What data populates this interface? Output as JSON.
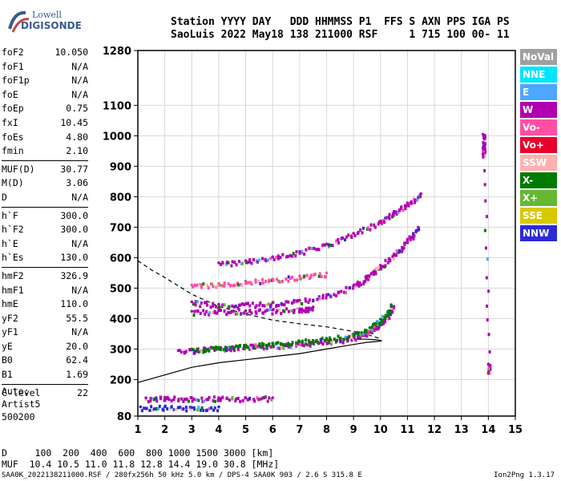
{
  "logo": {
    "line1": "Lowell",
    "line2": "DIGISONDE"
  },
  "header": {
    "labels": "Station YYYY DAY   DDD HHMMSS P1  FFS S AXN PPS IGA PS",
    "values": "SaoLuis 2022 May18 138 211000 RSF     1 715 100 00- 11"
  },
  "params": {
    "group1": [
      {
        "k": "foF2",
        "v": "10.050"
      },
      {
        "k": "foF1",
        "v": "N/A"
      },
      {
        "k": "foF1p",
        "v": "N/A"
      },
      {
        "k": "foE",
        "v": "N/A"
      },
      {
        "k": "foEp",
        "v": "0.75"
      },
      {
        "k": "fxI",
        "v": "10.45"
      },
      {
        "k": "foEs",
        "v": "4.80"
      },
      {
        "k": "fmin",
        "v": "2.10"
      }
    ],
    "group2": [
      {
        "k": "MUF(D)",
        "v": "30.77"
      },
      {
        "k": "M(D)",
        "v": "3.06"
      },
      {
        "k": "D",
        "v": "N/A"
      }
    ],
    "group3": [
      {
        "k": "h`F",
        "v": "300.0"
      },
      {
        "k": "h`F2",
        "v": "300.0"
      },
      {
        "k": "h`E",
        "v": "N/A"
      },
      {
        "k": "h`Es",
        "v": "130.0"
      }
    ],
    "group4": [
      {
        "k": "hmF2",
        "v": "326.9"
      },
      {
        "k": "hmF1",
        "v": "N/A"
      },
      {
        "k": "hmE",
        "v": "110.0"
      },
      {
        "k": "yF2",
        "v": "55.5"
      },
      {
        "k": "yF1",
        "v": "N/A"
      },
      {
        "k": "yE",
        "v": "20.0"
      },
      {
        "k": "B0",
        "v": "62.4"
      },
      {
        "k": "B1",
        "v": "1.69"
      }
    ],
    "group5": [
      {
        "k": "C-level",
        "v": "22"
      }
    ]
  },
  "autoscaling": {
    "line1": "Auto:",
    "line2": "Artist5",
    "line3": "500200"
  },
  "footer": {
    "dist_row": "D     100  200  400  600  800 1000 1500 3000 [km]",
    "muf_row": "MUF  10.4 10.5 11.0 11.8 12.8 14.4 19.0 30.8 [MHz]",
    "file_info": "SAA0K_2022138211000.RSF / 280fx256h 50 kHz 5.0 km / DPS-4 SAA0K 903 / 2.6 S 315.8 E",
    "version": "Ion2Png 1.3.17"
  },
  "legend": [
    {
      "label": "NoVal",
      "color": "#a0a0a0"
    },
    {
      "label": "NNE",
      "color": "#00e5ff"
    },
    {
      "label": "E",
      "color": "#4da6ff"
    },
    {
      "label": "W",
      "color": "#b000b0"
    },
    {
      "label": "Vo-",
      "color": "#ff4fa3"
    },
    {
      "label": "Vo+",
      "color": "#e8002a"
    },
    {
      "label": "SSW",
      "color": "#ffb0b0"
    },
    {
      "label": "X-",
      "color": "#007a00"
    },
    {
      "label": "X+",
      "color": "#66b832"
    },
    {
      "label": "SSE",
      "color": "#d8c800"
    },
    {
      "label": "NNW",
      "color": "#2a2ad8"
    }
  ],
  "chart_data": {
    "type": "scatter",
    "xlim": [
      1,
      15
    ],
    "ylim": [
      80,
      1280
    ],
    "x_ticks": [
      1,
      2,
      3,
      4,
      5,
      6,
      7,
      8,
      9,
      10,
      11,
      12,
      13,
      14,
      15
    ],
    "y_ticks": [
      80,
      200,
      300,
      400,
      500,
      600,
      700,
      800,
      900,
      1000,
      1100,
      1280
    ],
    "grid": true,
    "traces": [
      {
        "name": "F2 O-trace",
        "color": "#b000b0",
        "x": [
          2.5,
          3.5,
          4.5,
          5.5,
          6.5,
          7.5,
          8.5,
          9.2,
          9.7,
          10.1,
          10.5
        ],
        "y": [
          295,
          302,
          308,
          312,
          316,
          322,
          332,
          345,
          365,
          395,
          440
        ]
      },
      {
        "name": "F2 2nd hop",
        "color": "#b000b0",
        "x": [
          3,
          4,
          5,
          6,
          7,
          8,
          9,
          9.5,
          10,
          10.5,
          11,
          11.4
        ],
        "y": [
          455,
          447,
          448,
          452,
          460,
          478,
          508,
          540,
          575,
          612,
          660,
          700
        ]
      },
      {
        "name": "F2 3rd hop",
        "color": "#b000b0",
        "x": [
          4,
          5,
          6,
          7,
          8,
          9,
          10,
          10.5,
          11,
          11.5
        ],
        "y": [
          583,
          590,
          603,
          620,
          645,
          680,
          720,
          752,
          780,
          810
        ]
      },
      {
        "name": "mid layer",
        "color": "#ff4fa3",
        "x": [
          3,
          4,
          5,
          6,
          7,
          8
        ],
        "y": [
          510,
          515,
          522,
          530,
          540,
          550
        ]
      },
      {
        "name": "X trace",
        "color": "#007a00",
        "x": [
          3,
          4,
          5,
          6,
          7,
          8,
          9,
          9.6,
          10,
          10.4
        ],
        "y": [
          300,
          306,
          312,
          318,
          325,
          335,
          350,
          370,
          398,
          445
        ]
      },
      {
        "name": "Es",
        "color": "#b000b0",
        "x": [
          1.3,
          2,
          3,
          4,
          5,
          6
        ],
        "y": [
          140,
          142,
          140,
          140,
          140,
          140
        ]
      },
      {
        "name": "Es low",
        "color": "#2a2ad8",
        "x": [
          1.1,
          2,
          3,
          4
        ],
        "y": [
          110,
          110,
          108,
          110
        ]
      },
      {
        "name": "upper",
        "color": "#b000b0",
        "x": [
          3,
          4,
          5,
          6,
          7,
          7.5
        ],
        "y": [
          424,
          426,
          426,
          428,
          432,
          438
        ]
      },
      {
        "name": "spread 14 MHz",
        "color": "#b000b0",
        "x": [
          13.8,
          13.8,
          13.8,
          14,
          14
        ],
        "y": [
          1005,
          960,
          940,
          250,
          220
        ]
      }
    ],
    "profile": {
      "x": [
        1,
        2,
        3,
        4,
        5,
        6,
        7,
        8,
        9,
        9.5,
        9.9,
        10.05,
        9.9,
        9.5,
        9
      ],
      "y": [
        190,
        215,
        240,
        255,
        265,
        275,
        285,
        300,
        315,
        322,
        325,
        327,
        330,
        332,
        333
      ]
    },
    "profile_dashed": {
      "x": [
        1,
        1.5,
        2,
        3,
        4,
        5,
        6,
        7,
        8,
        9,
        9.6,
        10.05
      ],
      "y": [
        590,
        560,
        535,
        480,
        440,
        415,
        395,
        383,
        373,
        358,
        345,
        333
      ]
    }
  }
}
